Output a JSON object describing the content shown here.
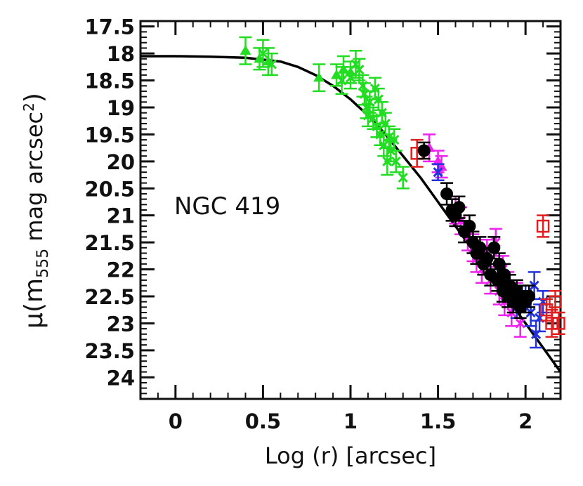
{
  "chart_data": {
    "type": "scatter",
    "title": "",
    "annotation": "NGC 419",
    "xlabel": "Log (r) [arcsec]",
    "ylabel_parts": {
      "prefix": "μ(m",
      "subscript": "555",
      "middle": " mag arcsec",
      "superscript": "2",
      "suffix": ")"
    },
    "xlim": [
      -0.2,
      2.2
    ],
    "ylim": [
      24.4,
      17.4
    ],
    "y_inverted": true,
    "x_ticks": [
      "0",
      "0.5",
      "1",
      "1.5",
      "2"
    ],
    "y_ticks": [
      "17.5",
      "18",
      "18.5",
      "19",
      "19.5",
      "20",
      "20.5",
      "21",
      "21.5",
      "22",
      "22.5",
      "23",
      "23.5",
      "24"
    ],
    "grid": false,
    "legend": "none",
    "colors": {
      "green": "#22dd22",
      "magenta": "#ee22ee",
      "blue": "#2233dd",
      "red": "#e02020",
      "black": "#000000"
    },
    "series": [
      {
        "marker": "triangle",
        "color": "#22dd22",
        "points": [
          [
            0.4,
            17.95,
            0.25
          ],
          [
            0.48,
            18.1,
            0.2
          ],
          [
            0.53,
            18.15,
            0.25
          ],
          [
            0.82,
            18.45,
            0.25
          ],
          [
            0.92,
            18.4,
            0.2
          ],
          [
            0.96,
            18.3,
            0.25
          ],
          [
            1.0,
            18.35,
            0.2
          ]
        ]
      },
      {
        "marker": "x",
        "color": "#22dd22",
        "points": [
          [
            0.5,
            18.0,
            0.25
          ],
          [
            0.55,
            18.2,
            0.2
          ],
          [
            0.95,
            18.5,
            0.25
          ],
          [
            1.0,
            18.45,
            0.2
          ],
          [
            1.03,
            18.2,
            0.25
          ],
          [
            1.05,
            18.3,
            0.2
          ],
          [
            1.07,
            18.6,
            0.2
          ],
          [
            1.08,
            18.75,
            0.2
          ],
          [
            1.09,
            19.0,
            0.2
          ],
          [
            1.1,
            19.15,
            0.2
          ],
          [
            1.11,
            18.9,
            0.2
          ],
          [
            1.13,
            19.2,
            0.2
          ],
          [
            1.14,
            18.65,
            0.2
          ],
          [
            1.15,
            19.35,
            0.2
          ],
          [
            1.16,
            18.85,
            0.2
          ],
          [
            1.17,
            19.5,
            0.2
          ],
          [
            1.18,
            19.1,
            0.2
          ],
          [
            1.19,
            19.7,
            0.2
          ],
          [
            1.2,
            19.3,
            0.2
          ],
          [
            1.21,
            20.0,
            0.25
          ],
          [
            1.22,
            19.55,
            0.2
          ],
          [
            1.23,
            19.8,
            0.2
          ],
          [
            1.25,
            19.6,
            0.2
          ],
          [
            1.26,
            20.0,
            0.2
          ],
          [
            1.3,
            20.3,
            0.2
          ]
        ]
      },
      {
        "marker": "triangle",
        "color": "#ee22ee",
        "points": [
          [
            1.45,
            19.75,
            0.25
          ],
          [
            1.5,
            20.0,
            0.2
          ],
          [
            1.52,
            20.1,
            0.2
          ]
        ]
      },
      {
        "marker": "x",
        "color": "#ee22ee",
        "points": [
          [
            1.6,
            20.9,
            0.25
          ],
          [
            1.63,
            21.1,
            0.25
          ],
          [
            1.67,
            21.4,
            0.25
          ],
          [
            1.7,
            21.6,
            0.25
          ],
          [
            1.72,
            21.8,
            0.25
          ],
          [
            1.75,
            22.0,
            0.25
          ],
          [
            1.78,
            21.7,
            0.25
          ],
          [
            1.8,
            22.2,
            0.25
          ],
          [
            1.83,
            21.5,
            0.25
          ],
          [
            1.85,
            22.4,
            0.25
          ],
          [
            1.87,
            22.0,
            0.25
          ],
          [
            1.88,
            22.6,
            0.25
          ],
          [
            1.9,
            22.3,
            0.25
          ],
          [
            1.92,
            22.8,
            0.25
          ],
          [
            1.95,
            22.5,
            0.25
          ],
          [
            1.97,
            23.0,
            0.25
          ]
        ]
      },
      {
        "marker": "x",
        "color": "#2233dd",
        "points": [
          [
            1.5,
            20.2,
            0.15
          ],
          [
            1.95,
            22.7,
            0.2
          ],
          [
            2.0,
            22.5,
            0.2
          ],
          [
            2.03,
            22.8,
            0.25
          ],
          [
            2.05,
            22.3,
            0.25
          ],
          [
            2.06,
            23.2,
            0.25
          ],
          [
            2.08,
            22.9,
            0.25
          ],
          [
            2.1,
            22.6,
            0.2
          ]
        ]
      },
      {
        "marker": "square",
        "color": "#e02020",
        "points": [
          [
            1.38,
            19.85,
            0.25
          ],
          [
            2.1,
            21.2,
            0.2
          ],
          [
            2.12,
            22.75,
            0.2
          ],
          [
            2.15,
            23.0,
            0.25
          ],
          [
            2.17,
            22.6,
            0.2
          ],
          [
            2.19,
            23.0,
            0.2
          ]
        ]
      },
      {
        "marker": "circle",
        "color": "#000000",
        "points": [
          [
            1.42,
            19.8,
            0.15
          ],
          [
            1.55,
            20.6,
            0.2
          ],
          [
            1.58,
            20.9,
            0.2
          ],
          [
            1.6,
            21.0,
            0.2
          ],
          [
            1.62,
            20.85,
            0.2
          ],
          [
            1.65,
            21.3,
            0.2
          ],
          [
            1.68,
            21.2,
            0.2
          ],
          [
            1.7,
            21.5,
            0.2
          ],
          [
            1.72,
            21.7,
            0.2
          ],
          [
            1.74,
            21.6,
            0.2
          ],
          [
            1.76,
            21.9,
            0.2
          ],
          [
            1.78,
            21.8,
            0.2
          ],
          [
            1.8,
            22.1,
            0.2
          ],
          [
            1.82,
            21.6,
            0.2
          ],
          [
            1.84,
            22.2,
            0.2
          ],
          [
            1.85,
            21.9,
            0.2
          ],
          [
            1.87,
            22.4,
            0.2
          ],
          [
            1.88,
            22.1,
            0.2
          ],
          [
            1.9,
            22.5,
            0.2
          ],
          [
            1.91,
            22.3,
            0.2
          ],
          [
            1.93,
            22.6,
            0.2
          ],
          [
            1.95,
            22.4,
            0.2
          ],
          [
            1.97,
            22.7,
            0.2
          ],
          [
            1.98,
            22.5,
            0.2
          ],
          [
            2.0,
            22.6,
            0.2
          ],
          [
            2.02,
            22.5,
            0.2
          ]
        ]
      }
    ],
    "model_curve": {
      "color": "#000000",
      "points": [
        [
          -0.2,
          18.05
        ],
        [
          0.0,
          18.05
        ],
        [
          0.2,
          18.06
        ],
        [
          0.4,
          18.08
        ],
        [
          0.6,
          18.15
        ],
        [
          0.7,
          18.25
        ],
        [
          0.8,
          18.4
        ],
        [
          0.9,
          18.6
        ],
        [
          1.0,
          18.85
        ],
        [
          1.1,
          19.15
        ],
        [
          1.2,
          19.5
        ],
        [
          1.3,
          19.9
        ],
        [
          1.4,
          20.3
        ],
        [
          1.5,
          20.75
        ],
        [
          1.6,
          21.2
        ],
        [
          1.7,
          21.65
        ],
        [
          1.8,
          22.1
        ],
        [
          1.9,
          22.55
        ],
        [
          2.0,
          23.0
        ],
        [
          2.1,
          23.45
        ],
        [
          2.2,
          23.9
        ]
      ]
    }
  }
}
